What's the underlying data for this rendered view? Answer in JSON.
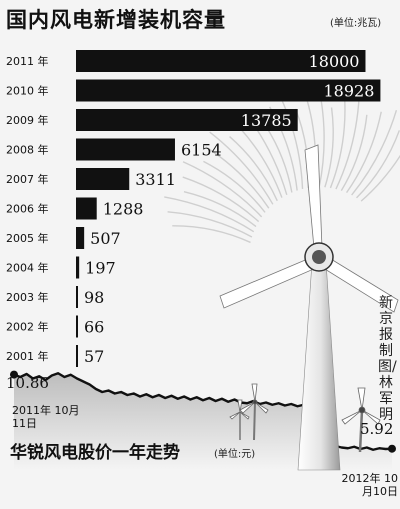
{
  "chart_data": [
    {
      "type": "bar",
      "orientation": "horizontal",
      "title": "国内风电新增装机容量",
      "unit_label": "(单位:兆瓦)",
      "categories": [
        "2011 年",
        "2010 年",
        "2009 年",
        "2008 年",
        "2007 年",
        "2006 年",
        "2005 年",
        "2004 年",
        "2003 年",
        "2002 年",
        "2001 年"
      ],
      "values": [
        18000,
        18928,
        13785,
        6154,
        3311,
        1288,
        507,
        197,
        98,
        66,
        57
      ],
      "value_labels": [
        "18000",
        "18928",
        "13785",
        "6154",
        "3311",
        "1288",
        "507",
        "197",
        "98",
        "66",
        "57"
      ],
      "bar_color": "#111111"
    },
    {
      "type": "line",
      "title": "华锐风电股价一年走势",
      "unit_label": "(单位:元)",
      "x_start_label": "2011年 10月11日",
      "x_end_label": "2012年 10月10日",
      "start_value_label": "10.86",
      "end_value_label": "5.92",
      "start_value": 10.86,
      "end_value": 5.92,
      "ylim": [
        4.5,
        12.5
      ],
      "values": [
        10.86,
        10.7,
        10.9,
        10.6,
        10.75,
        10.5,
        10.8,
        10.95,
        10.7,
        10.85,
        10.6,
        10.4,
        10.2,
        9.9,
        9.7,
        9.8,
        9.6,
        9.7,
        9.5,
        9.6,
        9.4,
        9.55,
        9.35,
        9.5,
        9.3,
        9.45,
        9.25,
        9.4,
        9.2,
        9.35,
        9.15,
        9.3,
        9.1,
        9.25,
        9.05,
        9.2,
        9.0,
        8.95,
        9.1,
        8.9,
        9.0,
        8.85,
        8.95,
        8.8,
        8.9,
        8.75,
        8.85,
        8.7,
        6.9,
        6.6,
        6.3,
        6.1,
        6.0,
        5.95,
        6.05,
        5.9,
        6.0,
        5.85,
        5.95,
        5.9,
        5.92
      ],
      "line_color": "#111111",
      "fill_color": "#cfcfcf"
    }
  ],
  "credit_text": "新京报制图/林军明"
}
